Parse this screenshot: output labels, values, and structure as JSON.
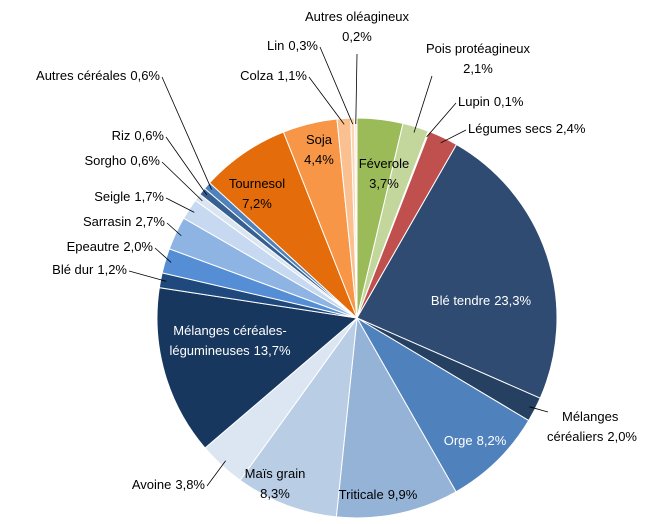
{
  "chart_data": {
    "type": "pie",
    "categories": [
      "Féverole",
      "Pois protéagineux",
      "Lupin",
      "Légumes secs",
      "Blé tendre",
      "Mélanges céréaliers",
      "Orge",
      "Triticale",
      "Maïs grain",
      "Avoine",
      "Mélanges céréales-légumineuses",
      "Blé dur",
      "Epeautre",
      "Sarrasin",
      "Seigle",
      "Sorgho",
      "Riz",
      "Autres céréales",
      "Tournesol",
      "Soja",
      "Colza",
      "Lin",
      "Autres oléagineux"
    ],
    "values": [
      3.7,
      2.1,
      0.1,
      2.4,
      23.3,
      2.0,
      8.2,
      9.9,
      8.3,
      3.8,
      13.7,
      1.2,
      2.0,
      2.7,
      1.7,
      0.6,
      0.6,
      0.6,
      7.2,
      4.4,
      1.1,
      0.3,
      0.2
    ],
    "value_labels": [
      "3,7%",
      "2,1%",
      "0,1%",
      "2,4%",
      "23,3%",
      "2,0%",
      "8,2%",
      "9,9%",
      "8,3%",
      "3,8%",
      "13,7%",
      "1,2%",
      "2,0%",
      "2,7%",
      "1,7%",
      "0,6%",
      "0,6%",
      "0,6%",
      "7,2%",
      "4,4%",
      "1,1%",
      "0,3%",
      "0,2%"
    ],
    "colors": [
      "#9bbb59",
      "#c3d69b",
      "#d7e4bd",
      "#c0504d",
      "#2f4b72",
      "#254061",
      "#4f81bd",
      "#95b3d7",
      "#b9cde5",
      "#dce6f2",
      "#17375e",
      "#1f497d",
      "#558ed5",
      "#8eb4e3",
      "#c6d9f1",
      "#dbe5f1",
      "#376092",
      "#4f81bd",
      "#e46c0a",
      "#f79646",
      "#fac090",
      "#fcd5b5",
      "#fde9d9"
    ]
  }
}
